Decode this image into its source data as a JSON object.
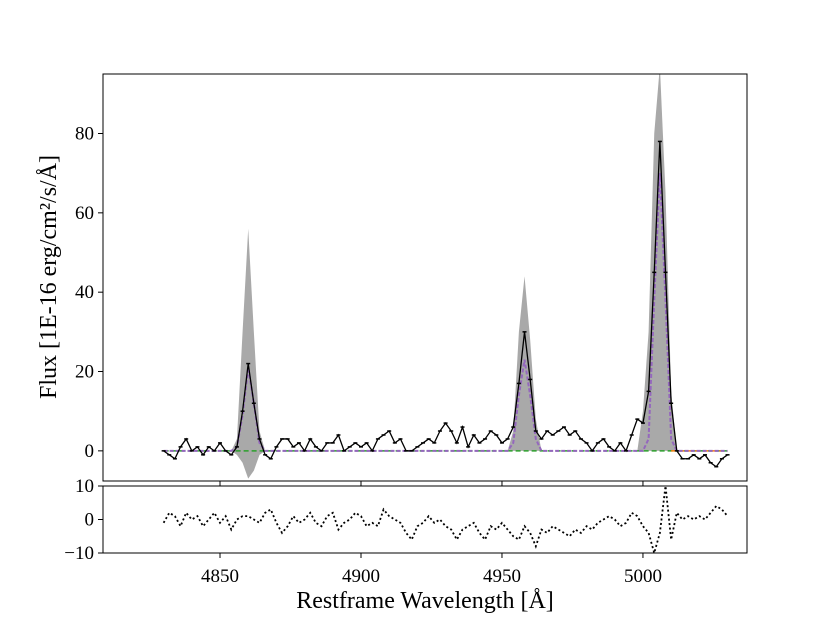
{
  "chart_data": {
    "type": "spectrum",
    "xlabel": "Restframe Wavelength [Å]",
    "ylabel": "Flux [1E-16 erg/cm²/s/Å]",
    "xlim": [
      4808.5,
      5036.9
    ],
    "xticks": [
      4850,
      4900,
      4950,
      5000
    ],
    "ylim": [
      -7.6,
      95
    ],
    "yticks": [
      0,
      20,
      40,
      60,
      80
    ],
    "x": [
      4830,
      4832,
      4834,
      4836,
      4838,
      4840,
      4842,
      4844,
      4846,
      4848,
      4850,
      4852,
      4854,
      4856,
      4858,
      4860,
      4862,
      4864,
      4866,
      4868,
      4870,
      4872,
      4874,
      4876,
      4878,
      4880,
      4882,
      4884,
      4886,
      4888,
      4890,
      4892,
      4894,
      4896,
      4898,
      4900,
      4902,
      4904,
      4906,
      4908,
      4910,
      4912,
      4914,
      4916,
      4918,
      4920,
      4922,
      4924,
      4926,
      4928,
      4930,
      4932,
      4934,
      4936,
      4938,
      4940,
      4942,
      4944,
      4946,
      4948,
      4950,
      4952,
      4954,
      4956,
      4958,
      4960,
      4962,
      4964,
      4966,
      4968,
      4970,
      4972,
      4974,
      4976,
      4978,
      4980,
      4982,
      4984,
      4986,
      4988,
      4990,
      4992,
      4994,
      4996,
      4998,
      5000,
      5002,
      5004,
      5006,
      5008,
      5010,
      5012,
      5014,
      5016,
      5018,
      5020,
      5022,
      5024,
      5026,
      5028,
      5030
    ],
    "band": {
      "color": "#a9a9a9",
      "upper": [
        0,
        0,
        0,
        0,
        0,
        0,
        0,
        0,
        0,
        0,
        0,
        0,
        0,
        3,
        30,
        56,
        30,
        5,
        0,
        0,
        0,
        0,
        0,
        0,
        0,
        0,
        0,
        0,
        0,
        0,
        0,
        0,
        0,
        0,
        0,
        0,
        0,
        0,
        0,
        0,
        0,
        0,
        0,
        0,
        0,
        0,
        0,
        0,
        0,
        0,
        0,
        0,
        0,
        0,
        0,
        0,
        0,
        0,
        0,
        0,
        0,
        0,
        5,
        30,
        44,
        28,
        8,
        0,
        0,
        0,
        0,
        0,
        0,
        0,
        0,
        0,
        0,
        0,
        0,
        0,
        0,
        0,
        0,
        0,
        0,
        10,
        30,
        80,
        97,
        65,
        15,
        0,
        0,
        0,
        0,
        0,
        0,
        0,
        0,
        0,
        0
      ],
      "lower": [
        0,
        0,
        0,
        0,
        0,
        0,
        0,
        0,
        0,
        0,
        0,
        0,
        0,
        -1,
        -3,
        -7,
        -5,
        -1,
        0,
        0,
        0,
        0,
        0,
        0,
        0,
        0,
        0,
        0,
        0,
        0,
        0,
        0,
        0,
        0,
        0,
        0,
        0,
        0,
        0,
        0,
        0,
        0,
        0,
        0,
        0,
        0,
        0,
        0,
        0,
        0,
        0,
        0,
        0,
        0,
        0,
        0,
        0,
        0,
        0,
        0,
        0,
        0,
        0,
        0,
        0,
        0,
        0,
        0,
        0,
        0,
        0,
        0,
        0,
        0,
        0,
        0,
        0,
        0,
        0,
        0,
        0,
        0,
        0,
        0,
        0,
        0,
        0,
        0,
        0,
        0,
        0,
        0,
        0,
        0,
        0,
        0,
        0,
        0,
        0,
        0,
        0
      ]
    },
    "continuum": {
      "value": 0,
      "color": "#2ca02c",
      "color2": "#ff7f0e"
    },
    "series": [
      {
        "color": "#9467bd",
        "values": [
          0,
          0,
          0,
          0,
          0,
          0,
          0,
          0,
          0,
          0,
          0,
          0,
          0,
          1,
          9,
          21,
          12,
          2,
          0,
          0,
          0,
          0,
          0,
          0,
          0,
          0,
          0,
          0,
          0,
          0,
          0,
          0,
          0,
          0,
          0,
          0,
          0,
          0,
          0,
          0,
          0,
          0,
          0,
          0,
          0,
          0,
          0,
          0,
          0,
          0,
          0,
          0,
          0,
          0,
          0,
          0,
          0,
          0,
          0,
          0,
          0,
          0,
          2,
          14,
          23,
          14,
          3,
          0,
          0,
          0,
          0,
          0,
          0,
          0,
          0,
          0,
          0,
          0,
          0,
          0,
          0,
          0,
          0,
          0,
          0,
          0,
          3,
          38,
          70,
          38,
          3,
          0,
          0,
          0,
          0,
          0,
          0,
          0,
          0,
          0,
          0
        ]
      },
      {
        "color": "#000000",
        "values": [
          0,
          -1,
          -2,
          1,
          3,
          0,
          1,
          -1,
          1,
          0,
          2,
          0,
          -1,
          1,
          10,
          22,
          12,
          3,
          -1,
          -2,
          1,
          3,
          3,
          1,
          2,
          0,
          3,
          1,
          0,
          2,
          2,
          4,
          0,
          1,
          2,
          1,
          2,
          0,
          3,
          4,
          5,
          2,
          3,
          0,
          0,
          1,
          2,
          3,
          2,
          5,
          7,
          5,
          2,
          6,
          1,
          4,
          2,
          3,
          5,
          4,
          2,
          3,
          6,
          17,
          30,
          18,
          5,
          3,
          5,
          4,
          5,
          6,
          4,
          5,
          3,
          2,
          0,
          2,
          3,
          1,
          0,
          2,
          0,
          4,
          8,
          7,
          15,
          45,
          78,
          45,
          12,
          0,
          -2,
          -2,
          -1,
          -2,
          -1,
          -3,
          -4,
          -2,
          -1
        ]
      }
    ],
    "residual": {
      "ylim": [
        -10,
        10
      ],
      "yticks": [
        10,
        0,
        {
          "value": -10,
          "label": "−10"
        }
      ],
      "values": [
        -1,
        2,
        1,
        -2,
        2,
        0,
        1,
        -2,
        0,
        2,
        -1,
        1,
        -3,
        0,
        1,
        1,
        0,
        -1,
        2,
        3,
        -1,
        -4,
        -2,
        1,
        -1,
        0,
        2,
        -1,
        -2,
        1,
        2,
        -3,
        -1,
        0,
        2,
        1,
        -2,
        -1,
        -2,
        3,
        1,
        0,
        -1,
        -4,
        -6,
        -2,
        -1,
        1,
        -1,
        0,
        -2,
        -3,
        -6,
        -3,
        -2,
        -1,
        -4,
        -6,
        -2,
        -3,
        -1,
        -3,
        -5,
        -6,
        -2,
        -4,
        -8,
        -3,
        -4,
        -2,
        -3,
        -4,
        -5,
        -3,
        -4,
        -2,
        -3,
        -1,
        0,
        1,
        0,
        -2,
        -1,
        2,
        1,
        -2,
        -4,
        -10,
        -4,
        10,
        -6,
        2,
        0,
        1,
        0,
        1,
        0,
        2,
        4,
        3,
        1
      ]
    }
  }
}
